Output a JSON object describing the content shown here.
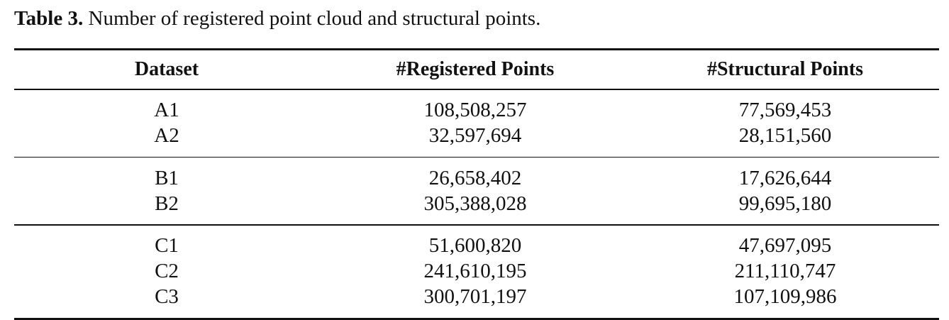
{
  "caption": {
    "label": "Table 3.",
    "text": "Number of registered point cloud and structural points."
  },
  "table": {
    "headers": [
      "Dataset",
      "#Registered Points",
      "#Structural Points"
    ],
    "groups": [
      [
        [
          "A1",
          "108,508,257",
          "77,569,453"
        ],
        [
          "A2",
          "32,597,694",
          "28,151,560"
        ]
      ],
      [
        [
          "B1",
          "26,658,402",
          "17,626,644"
        ],
        [
          "B2",
          "305,388,028",
          "99,695,180"
        ]
      ],
      [
        [
          "C1",
          "51,600,820",
          "47,697,095"
        ],
        [
          "C2",
          "241,610,195",
          "211,110,747"
        ],
        [
          "C3",
          "300,701,197",
          "107,109,986"
        ]
      ]
    ]
  }
}
